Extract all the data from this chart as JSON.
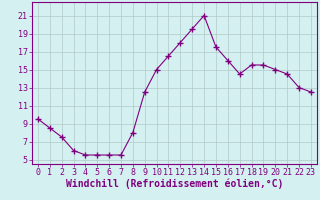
{
  "x": [
    0,
    1,
    2,
    3,
    4,
    5,
    6,
    7,
    8,
    9,
    10,
    11,
    12,
    13,
    14,
    15,
    16,
    17,
    18,
    19,
    20,
    21,
    22,
    23
  ],
  "y": [
    9.5,
    8.5,
    7.5,
    6.0,
    5.5,
    5.5,
    5.5,
    5.5,
    8.0,
    12.5,
    15.0,
    16.5,
    18.0,
    19.5,
    21.0,
    17.5,
    16.0,
    14.5,
    15.5,
    15.5,
    15.0,
    14.5,
    13.0,
    12.5
  ],
  "line_color": "#800080",
  "marker": "+",
  "marker_size": 4,
  "bg_color": "#d5f0f0",
  "grid_color": "#b0c8c8",
  "xlabel": "Windchill (Refroidissement éolien,°C)",
  "xlabel_color": "#800080",
  "xlabel_fontsize": 7,
  "ylabel_ticks": [
    5,
    7,
    9,
    11,
    13,
    15,
    17,
    19,
    21
  ],
  "xticks": [
    0,
    1,
    2,
    3,
    4,
    5,
    6,
    7,
    8,
    9,
    10,
    11,
    12,
    13,
    14,
    15,
    16,
    17,
    18,
    19,
    20,
    21,
    22,
    23
  ],
  "ylim": [
    4.5,
    22.5
  ],
  "xlim": [
    -0.5,
    23.5
  ],
  "tick_fontsize": 6,
  "tick_color": "#800080",
  "spine_color": "#800080"
}
